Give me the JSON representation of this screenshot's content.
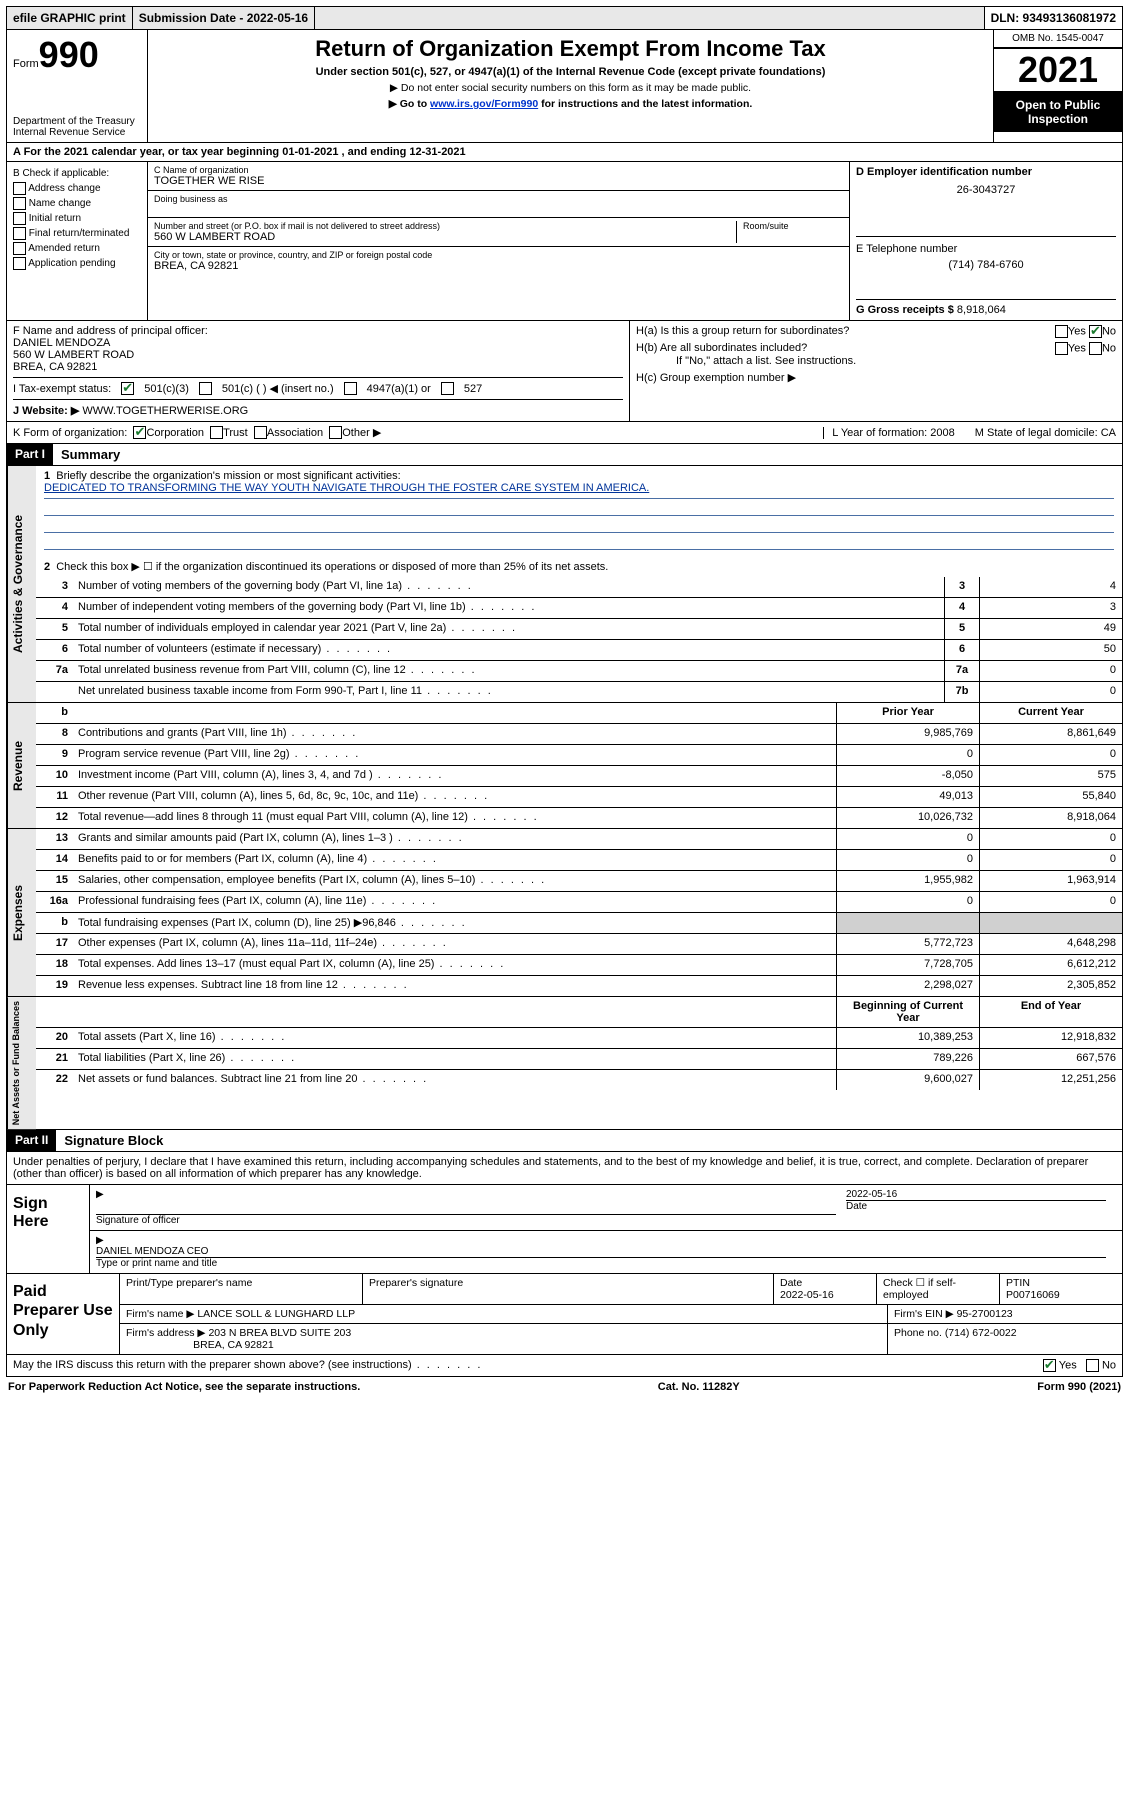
{
  "topbar": {
    "efile": "efile GRAPHIC print",
    "submission_label": "Submission Date - 2022-05-16",
    "dln": "DLN: 93493136081972"
  },
  "header": {
    "form_prefix": "Form",
    "form_number": "990",
    "title": "Return of Organization Exempt From Income Tax",
    "subtitle": "Under section 501(c), 527, or 4947(a)(1) of the Internal Revenue Code (except private foundations)",
    "note1": "▶ Do not enter social security numbers on this form as it may be made public.",
    "note2_pre": "▶ Go to ",
    "note2_link": "www.irs.gov/Form990",
    "note2_post": " for instructions and the latest information.",
    "dept": "Department of the Treasury",
    "irs": "Internal Revenue Service",
    "omb": "OMB No. 1545-0047",
    "year": "2021",
    "inspect": "Open to Public Inspection"
  },
  "rowA": {
    "text_pre": "A For the 2021 calendar year, or tax year beginning ",
    "begin": "01-01-2021",
    "mid": " , and ending ",
    "end": "12-31-2021"
  },
  "colB": {
    "label": "B Check if applicable:",
    "opts": [
      "Address change",
      "Name change",
      "Initial return",
      "Final return/terminated",
      "Amended return",
      "Application pending"
    ]
  },
  "colC": {
    "c_label": "C Name of organization",
    "c_val": "TOGETHER WE RISE",
    "dba": "Doing business as",
    "addr_label": "Number and street (or P.O. box if mail is not delivered to street address)",
    "room": "Room/suite",
    "addr_val": "560 W LAMBERT ROAD",
    "city_label": "City or town, state or province, country, and ZIP or foreign postal code",
    "city_val": "BREA, CA  92821"
  },
  "colD": {
    "d_label": "D Employer identification number",
    "d_val": "26-3043727",
    "e_label": "E Telephone number",
    "e_val": "(714) 784-6760",
    "g_label": "G Gross receipts $",
    "g_val": "8,918,064"
  },
  "colF": {
    "label": "F Name and address of principal officer:",
    "name": "DANIEL MENDOZA",
    "addr": "560 W LAMBERT ROAD",
    "city": "BREA, CA  92821"
  },
  "colH": {
    "ha": "H(a)  Is this a group return for subordinates?",
    "hb": "H(b)  Are all subordinates included?",
    "hb_note": "If \"No,\" attach a list. See instructions.",
    "hc": "H(c)  Group exemption number ▶",
    "yes": "Yes",
    "no": "No"
  },
  "rowI": {
    "label": "I   Tax-exempt status:",
    "o1": "501(c)(3)",
    "o2": "501(c) (   ) ◀ (insert no.)",
    "o3": "4947(a)(1) or",
    "o4": "527"
  },
  "rowJ": {
    "label": "J   Website: ▶",
    "val": "WWW.TOGETHERWERISE.ORG"
  },
  "rowK": {
    "label": "K Form of organization:",
    "o1": "Corporation",
    "o2": "Trust",
    "o3": "Association",
    "o4": "Other ▶",
    "l": "L Year of formation: 2008",
    "m": "M State of legal domicile: CA"
  },
  "part1": {
    "hdr": "Part I",
    "title": "Summary",
    "q1_label": "Briefly describe the organization's mission or most significant activities:",
    "q1_val": "DEDICATED TO TRANSFORMING THE WAY YOUTH NAVIGATE THROUGH THE FOSTER CARE SYSTEM IN AMERICA.",
    "q2": "Check this box ▶ ☐  if the organization discontinued its operations or disposed of more than 25% of its net assets."
  },
  "side": {
    "gov": "Activities & Governance",
    "rev": "Revenue",
    "exp": "Expenses",
    "net": "Net Assets or Fund Balances"
  },
  "gov_lines": [
    {
      "n": "3",
      "t": "Number of voting members of the governing body (Part VI, line 1a)",
      "b": "3",
      "v": "4"
    },
    {
      "n": "4",
      "t": "Number of independent voting members of the governing body (Part VI, line 1b)",
      "b": "4",
      "v": "3"
    },
    {
      "n": "5",
      "t": "Total number of individuals employed in calendar year 2021 (Part V, line 2a)",
      "b": "5",
      "v": "49"
    },
    {
      "n": "6",
      "t": "Total number of volunteers (estimate if necessary)",
      "b": "6",
      "v": "50"
    },
    {
      "n": "7a",
      "t": "Total unrelated business revenue from Part VIII, column (C), line 12",
      "b": "7a",
      "v": "0"
    },
    {
      "n": "",
      "t": "Net unrelated business taxable income from Form 990-T, Part I, line 11",
      "b": "7b",
      "v": "0"
    }
  ],
  "col_hdrs": {
    "prior": "Prior Year",
    "current": "Current Year",
    "boy": "Beginning of Current Year",
    "eoy": "End of Year"
  },
  "rev_lines": [
    {
      "n": "8",
      "t": "Contributions and grants (Part VIII, line 1h)",
      "p": "9,985,769",
      "c": "8,861,649"
    },
    {
      "n": "9",
      "t": "Program service revenue (Part VIII, line 2g)",
      "p": "0",
      "c": "0"
    },
    {
      "n": "10",
      "t": "Investment income (Part VIII, column (A), lines 3, 4, and 7d )",
      "p": "-8,050",
      "c": "575"
    },
    {
      "n": "11",
      "t": "Other revenue (Part VIII, column (A), lines 5, 6d, 8c, 9c, 10c, and 11e)",
      "p": "49,013",
      "c": "55,840"
    },
    {
      "n": "12",
      "t": "Total revenue—add lines 8 through 11 (must equal Part VIII, column (A), line 12)",
      "p": "10,026,732",
      "c": "8,918,064"
    }
  ],
  "exp_lines": [
    {
      "n": "13",
      "t": "Grants and similar amounts paid (Part IX, column (A), lines 1–3 )",
      "p": "0",
      "c": "0"
    },
    {
      "n": "14",
      "t": "Benefits paid to or for members (Part IX, column (A), line 4)",
      "p": "0",
      "c": "0"
    },
    {
      "n": "15",
      "t": "Salaries, other compensation, employee benefits (Part IX, column (A), lines 5–10)",
      "p": "1,955,982",
      "c": "1,963,914"
    },
    {
      "n": "16a",
      "t": "Professional fundraising fees (Part IX, column (A), line 11e)",
      "p": "0",
      "c": "0"
    },
    {
      "n": "b",
      "t": "Total fundraising expenses (Part IX, column (D), line 25) ▶96,846",
      "p": "",
      "c": "",
      "shade": true
    },
    {
      "n": "17",
      "t": "Other expenses (Part IX, column (A), lines 11a–11d, 11f–24e)",
      "p": "5,772,723",
      "c": "4,648,298"
    },
    {
      "n": "18",
      "t": "Total expenses. Add lines 13–17 (must equal Part IX, column (A), line 25)",
      "p": "7,728,705",
      "c": "6,612,212"
    },
    {
      "n": "19",
      "t": "Revenue less expenses. Subtract line 18 from line 12",
      "p": "2,298,027",
      "c": "2,305,852"
    }
  ],
  "net_lines": [
    {
      "n": "20",
      "t": "Total assets (Part X, line 16)",
      "p": "10,389,253",
      "c": "12,918,832"
    },
    {
      "n": "21",
      "t": "Total liabilities (Part X, line 26)",
      "p": "789,226",
      "c": "667,576"
    },
    {
      "n": "22",
      "t": "Net assets or fund balances. Subtract line 21 from line 20",
      "p": "9,600,027",
      "c": "12,251,256"
    }
  ],
  "part2": {
    "hdr": "Part II",
    "title": "Signature Block",
    "decl": "Under penalties of perjury, I declare that I have examined this return, including accompanying schedules and statements, and to the best of my knowledge and belief, it is true, correct, and complete. Declaration of preparer (other than officer) is based on all information of which preparer has any knowledge."
  },
  "sign": {
    "here": "Sign Here",
    "sig_label": "Signature of officer",
    "date_label": "Date",
    "date_val": "2022-05-16",
    "name_val": "DANIEL MENDOZA  CEO",
    "name_label": "Type or print name and title"
  },
  "prep": {
    "title": "Paid Preparer Use Only",
    "r1": {
      "c1": "Print/Type preparer's name",
      "c2": "Preparer's signature",
      "c3": "Date",
      "c3v": "2022-05-16",
      "c4": "Check ☐ if self-employed",
      "c5": "PTIN",
      "c5v": "P00716069"
    },
    "r2": {
      "label": "Firm's name     ▶",
      "val": "LANCE SOLL & LUNGHARD LLP",
      "ein_label": "Firm's EIN ▶",
      "ein": "95-2700123"
    },
    "r3": {
      "label": "Firm's address ▶",
      "val": "203 N BREA BLVD SUITE 203",
      "phone_label": "Phone no.",
      "phone": "(714) 672-0022"
    },
    "r3b": {
      "val": "BREA, CA  92821"
    }
  },
  "discuss": {
    "text": "May the IRS discuss this return with the preparer shown above? (see instructions)",
    "yes": "Yes",
    "no": "No"
  },
  "footer": {
    "left": "For Paperwork Reduction Act Notice, see the separate instructions.",
    "mid": "Cat. No. 11282Y",
    "right": "Form 990 (2021)"
  },
  "colors": {
    "link": "#0033cc",
    "check_green": "#1a7a2e",
    "shade": "#d0d0d0",
    "side_bg": "#e8e8e8"
  }
}
